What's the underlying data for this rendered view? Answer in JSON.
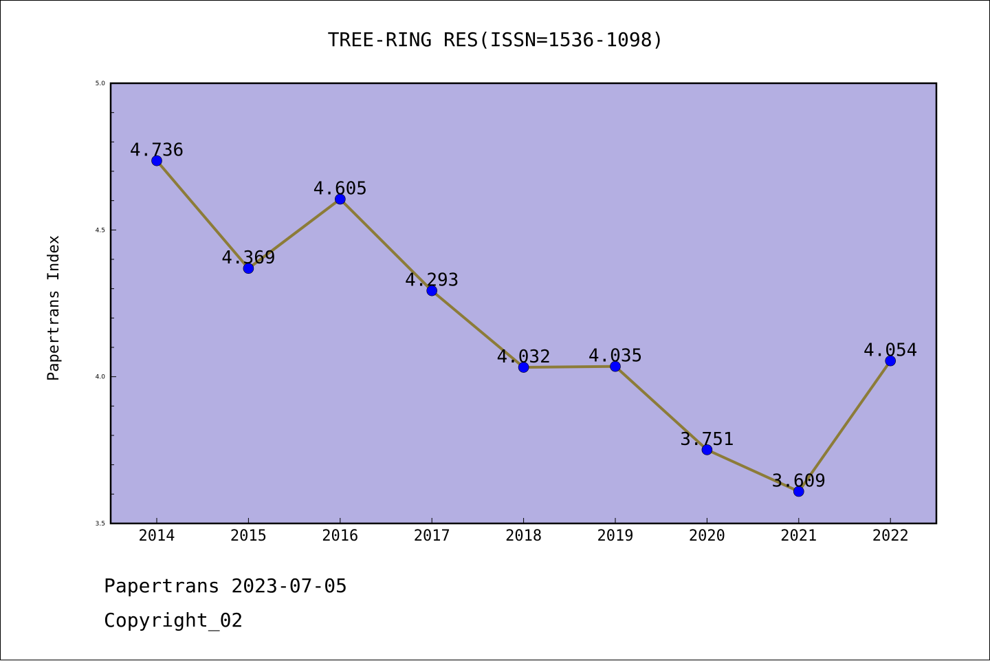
{
  "chart_data": {
    "type": "line",
    "title": "TREE-RING RES(ISSN=1536-1098)",
    "xlabel": "",
    "ylabel": "Papertrans Index",
    "categories": [
      "2014",
      "2015",
      "2016",
      "2017",
      "2018",
      "2019",
      "2020",
      "2021",
      "2022"
    ],
    "series": [
      {
        "values": [
          4.736,
          4.369,
          4.605,
          4.293,
          4.032,
          4.035,
          3.751,
          3.609,
          4.054
        ],
        "labels": [
          "4.736",
          "4.369",
          "4.605",
          "4.293",
          "4.032",
          "4.035",
          "3.751",
          "3.609",
          "4.054"
        ]
      }
    ],
    "ylim": [
      3.5,
      5.0
    ],
    "yticks": [
      "3.5",
      "4.0",
      "4.5",
      "5.0"
    ],
    "y_minor_step": 0.1,
    "grid": false,
    "legend": "none",
    "colors": {
      "plot_background": "#b4afe2",
      "line": "#8c7c38",
      "marker": "#0000ff",
      "axes": "#000000"
    }
  },
  "footer": {
    "line1": "Papertrans 2023-07-05",
    "line2": "Copyright_02"
  }
}
